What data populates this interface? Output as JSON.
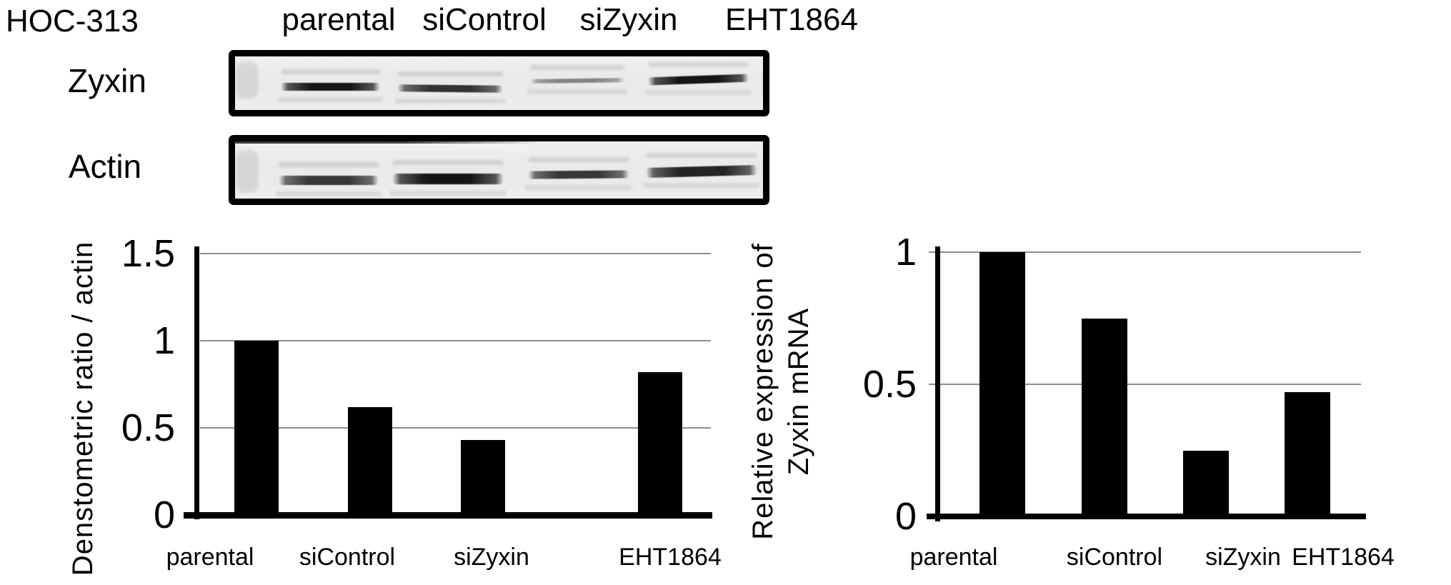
{
  "figure": {
    "cell_line_label": "HOC-313",
    "lane_labels": [
      "parental",
      "siControl",
      "siZyxin",
      "EHT1864"
    ],
    "blot_rows": [
      {
        "label": "Zyxin",
        "bands": [
          {
            "lane": "parental",
            "intensity": 0.95
          },
          {
            "lane": "siControl",
            "intensity": 0.82
          },
          {
            "lane": "siZyxin",
            "intensity": 0.45
          },
          {
            "lane": "EHT1864",
            "intensity": 0.95
          }
        ]
      },
      {
        "label": "Actin",
        "bands": [
          {
            "lane": "parental",
            "intensity": 0.8
          },
          {
            "lane": "siControl",
            "intensity": 0.95
          },
          {
            "lane": "siZyxin",
            "intensity": 0.8
          },
          {
            "lane": "EHT1864",
            "intensity": 0.88
          }
        ]
      }
    ]
  },
  "chart_data": [
    {
      "id": "densitometry",
      "type": "bar",
      "title": "",
      "ylabel": "Denstometric ratio / actin",
      "xlabel": "",
      "categories": [
        "parental",
        "siControl",
        "siZyxin",
        "EHT1864"
      ],
      "values": [
        1.0,
        0.62,
        0.43,
        0.82
      ],
      "yticks": [
        "0",
        "0.5",
        "1",
        "1.5"
      ],
      "ytick_values": [
        0,
        0.5,
        1,
        1.5
      ],
      "ylim": [
        0,
        1.5
      ],
      "grid": true,
      "legend": "none",
      "bar_color": "#000000",
      "gridline_color": "#8c8c8c"
    },
    {
      "id": "mrna",
      "type": "bar",
      "title": "",
      "ylabel": "Relative expression of Zyxin mRNA",
      "ylabel_lines": [
        "Relative expression of",
        "Zyxin mRNA"
      ],
      "xlabel": "",
      "categories": [
        "parental",
        "siControl",
        "siZyxin",
        "EHT1864"
      ],
      "values": [
        1.0,
        0.75,
        0.25,
        0.47
      ],
      "yticks": [
        "0",
        "0.5",
        "1"
      ],
      "ytick_values": [
        0,
        0.5,
        1
      ],
      "ylim": [
        0,
        1
      ],
      "grid": true,
      "legend": "none",
      "bar_color": "#000000",
      "gridline_color": "#8c8c8c"
    }
  ]
}
